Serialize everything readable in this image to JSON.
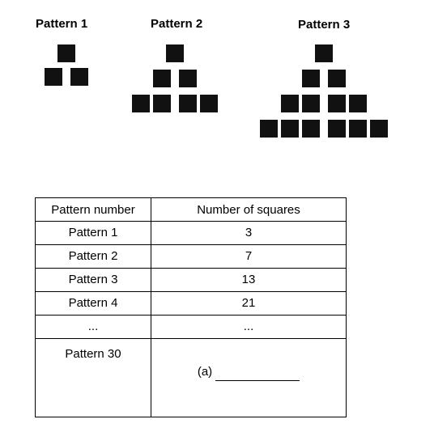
{
  "patterns": [
    {
      "label": "Pattern 1",
      "rows": 2
    },
    {
      "label": "Pattern 2",
      "rows": 3
    },
    {
      "label": "Pattern 3",
      "rows": 4
    }
  ],
  "table": {
    "headers": [
      "Pattern number",
      "Number of squares"
    ],
    "rows": [
      {
        "pattern": "Pattern 1",
        "squares": "3"
      },
      {
        "pattern": "Pattern 2",
        "squares": "7"
      },
      {
        "pattern": "Pattern 3",
        "squares": "13"
      },
      {
        "pattern": "Pattern 4",
        "squares": "21"
      },
      {
        "pattern": "...",
        "squares": "..."
      }
    ],
    "last_row": {
      "pattern": "Pattern 30",
      "answer_label": "(a)"
    }
  }
}
